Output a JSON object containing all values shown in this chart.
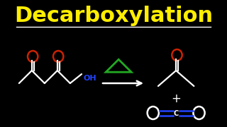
{
  "title": "Decarboxylation",
  "title_color": "#FFEE00",
  "bg_color": "#000000",
  "line_color": "#FFFFFF",
  "red_color": "#CC2200",
  "blue_color": "#2244FF",
  "green_color": "#22AA22",
  "title_fontsize": 22,
  "lw": 1.6
}
